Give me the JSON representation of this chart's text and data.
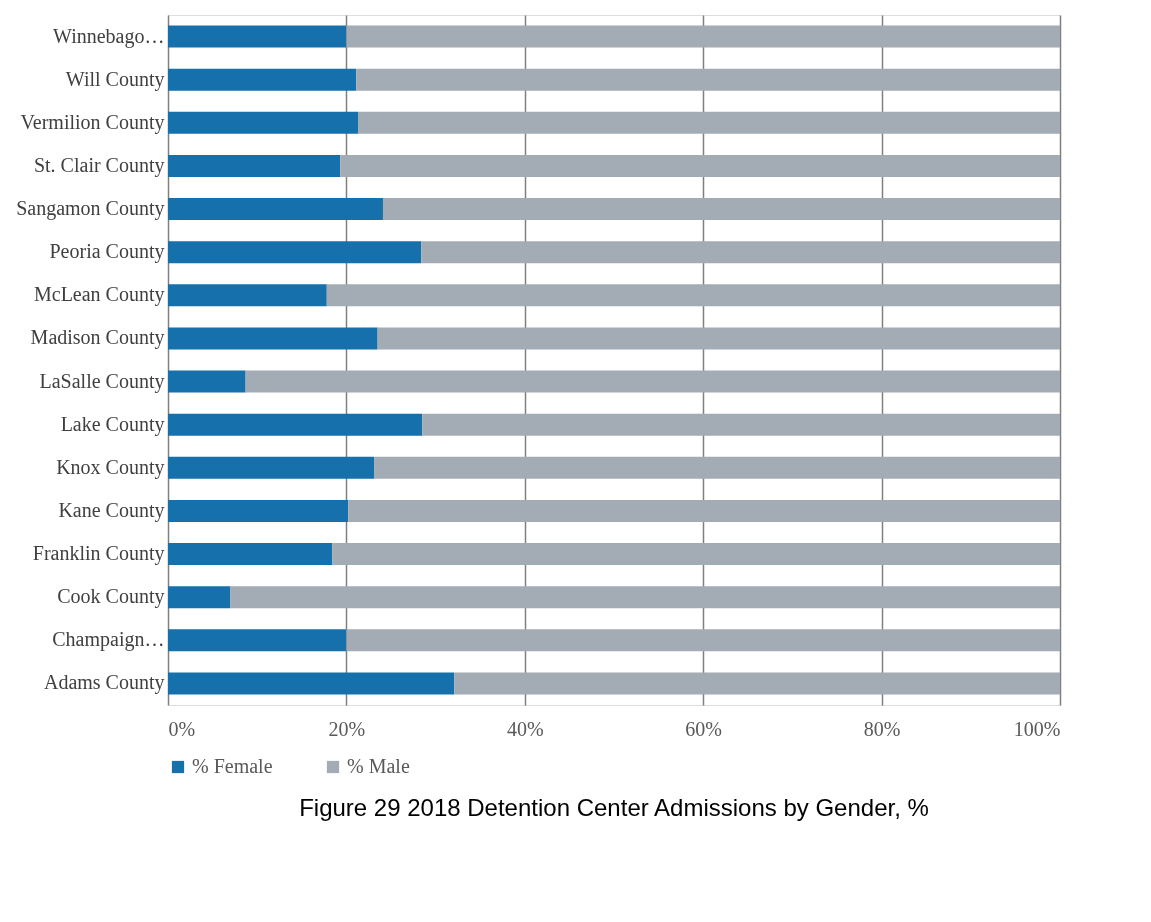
{
  "chart_data": {
    "type": "bar",
    "orientation": "horizontal",
    "stacked": true,
    "title": "Figure 29 2018 Detention Center Admissions by Gender, %",
    "categories": [
      "Winnebago…",
      "Will County",
      "Vermilion County",
      "St. Clair County",
      "Sangamon County",
      "Peoria County",
      "McLean County",
      "Madison County",
      "LaSalle County",
      "Lake County",
      "Knox County",
      "Kane County",
      "Franklin County",
      "Cook County",
      "Champaign…",
      "Adams County"
    ],
    "series": [
      {
        "name": "% Female",
        "color": "#1570ab",
        "values": [
          20.0,
          21.1,
          21.3,
          19.3,
          24.1,
          28.4,
          17.8,
          23.5,
          8.7,
          28.5,
          23.1,
          20.2,
          18.4,
          7.0,
          20.0,
          32.1
        ]
      },
      {
        "name": "% Male",
        "color": "#a3abb5",
        "values": [
          80.0,
          78.9,
          78.7,
          80.7,
          75.9,
          71.6,
          82.2,
          76.5,
          91.3,
          71.5,
          76.9,
          79.8,
          81.6,
          93.0,
          80.0,
          67.9
        ]
      }
    ],
    "xlim": [
      0,
      100
    ],
    "xticks": [
      {
        "value": 0,
        "label": "0%"
      },
      {
        "value": 20,
        "label": "20%"
      },
      {
        "value": 40,
        "label": "40%"
      },
      {
        "value": 60,
        "label": "60%"
      },
      {
        "value": 80,
        "label": "80%"
      },
      {
        "value": 100,
        "label": "100%"
      }
    ],
    "grid": "x",
    "legend": "bottom"
  }
}
